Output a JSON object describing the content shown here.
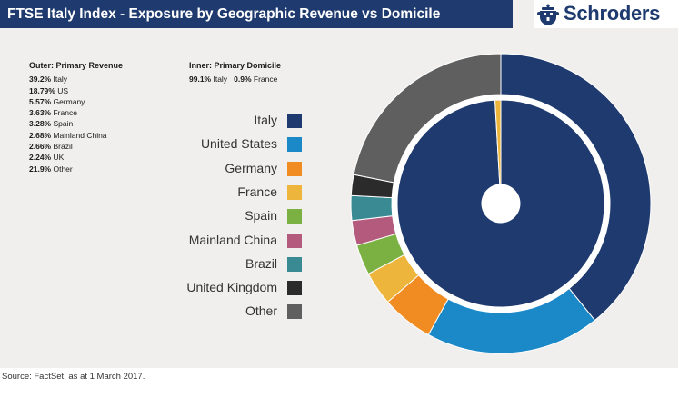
{
  "title": "FTSE Italy Index - Exposure by Geographic Revenue vs Domicile",
  "logo": {
    "brand": "Schroders",
    "icon": "schroders-crest-icon"
  },
  "outer_block": {
    "header": "Outer: Primary Revenue",
    "rows": [
      {
        "pct": "39.2%",
        "label": "Italy"
      },
      {
        "pct": "18.79%",
        "label": "US"
      },
      {
        "pct": "5.57%",
        "label": "Germany"
      },
      {
        "pct": "3.63%",
        "label": "France"
      },
      {
        "pct": "3.28%",
        "label": "Spain"
      },
      {
        "pct": "2.68%",
        "label": "Mainland China"
      },
      {
        "pct": "2.66%",
        "label": "Brazil"
      },
      {
        "pct": "2.24%",
        "label": "UK"
      },
      {
        "pct": "21.9%",
        "label": "Other"
      }
    ]
  },
  "inner_block": {
    "header": "Inner: Primary Domicile",
    "rows": [
      {
        "pct": "99.1%",
        "label": "Italy"
      },
      {
        "pct": "0.9%",
        "label": "France"
      }
    ]
  },
  "source": "Source: FactSet, as at 1 March 2017.",
  "chart_data": {
    "type": "pie",
    "variant": "nested-donut",
    "title": "FTSE Italy Index - Exposure by Geographic Revenue vs Domicile",
    "legend": [
      {
        "name": "Italy",
        "color": "#1e3a6e"
      },
      {
        "name": "United States",
        "color": "#1b88c8"
      },
      {
        "name": "Germany",
        "color": "#f08c22"
      },
      {
        "name": "France",
        "color": "#edb53c"
      },
      {
        "name": "Spain",
        "color": "#7bb043"
      },
      {
        "name": "Mainland China",
        "color": "#b35a7d"
      },
      {
        "name": "Brazil",
        "color": "#3a8a94"
      },
      {
        "name": "United Kingdom",
        "color": "#2b2b2b"
      },
      {
        "name": "Other",
        "color": "#5f5f5f"
      }
    ],
    "legend_position": "left of chart",
    "series": [
      {
        "name": "Outer: Primary Revenue",
        "categories": [
          "Italy",
          "United States",
          "Germany",
          "France",
          "Spain",
          "Mainland China",
          "Brazil",
          "United Kingdom",
          "Other"
        ],
        "values": [
          39.2,
          18.79,
          5.57,
          3.63,
          3.28,
          2.68,
          2.66,
          2.24,
          21.9
        ]
      },
      {
        "name": "Inner: Primary Domicile",
        "categories": [
          "Italy",
          "France"
        ],
        "values": [
          99.1,
          0.9
        ]
      }
    ]
  }
}
